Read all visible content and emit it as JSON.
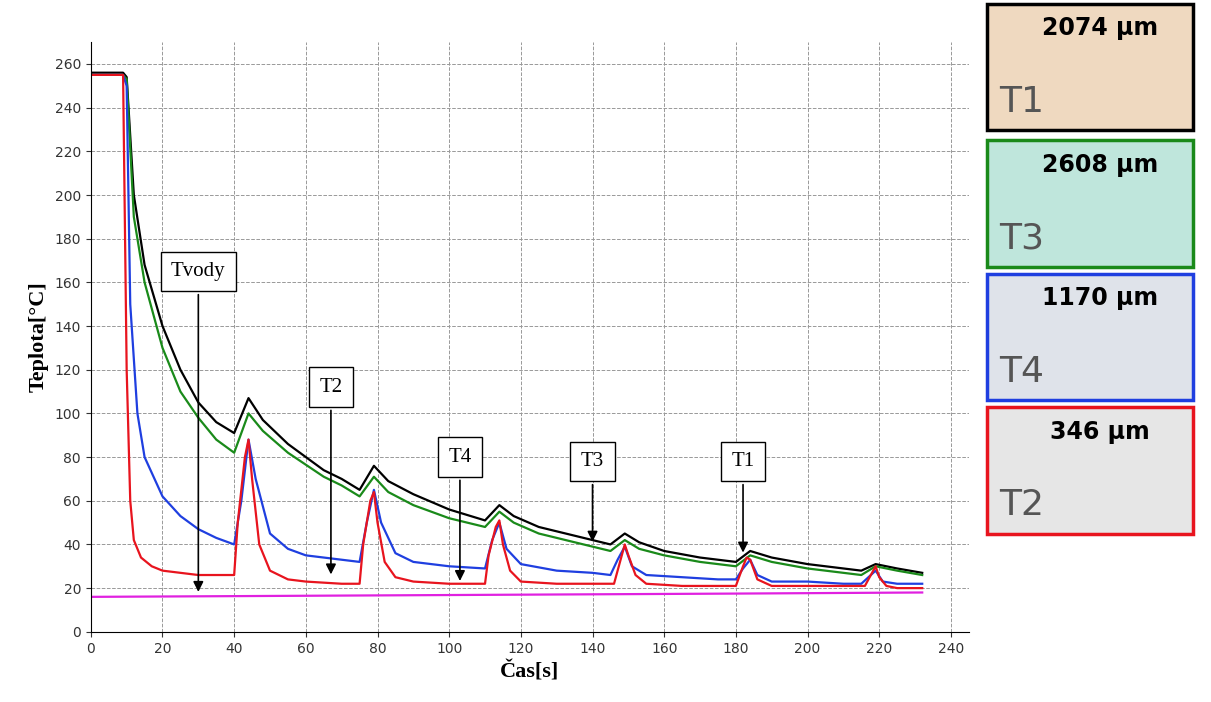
{
  "chart_data": {
    "type": "line",
    "x_label": "Čas[s]",
    "y_label": "Teplota[°C]",
    "xlim": [
      0,
      245
    ],
    "ylim": [
      0,
      270
    ],
    "xticks": [
      0,
      20,
      40,
      60,
      80,
      100,
      120,
      140,
      160,
      180,
      200,
      220,
      240
    ],
    "yticks": [
      0,
      20,
      40,
      60,
      80,
      100,
      120,
      140,
      160,
      180,
      200,
      220,
      240,
      260
    ],
    "grid": true,
    "series": [
      {
        "name": "T1",
        "color": "#000000",
        "x": [
          0,
          9,
          10,
          12,
          15,
          20,
          25,
          30,
          35,
          40,
          44,
          48,
          55,
          60,
          65,
          70,
          75,
          79,
          83,
          90,
          100,
          110,
          114,
          118,
          125,
          135,
          145,
          149,
          153,
          160,
          170,
          180,
          184,
          190,
          200,
          210,
          215,
          219,
          225,
          232
        ],
        "values": [
          256,
          256,
          254,
          200,
          168,
          140,
          120,
          105,
          96,
          91,
          107,
          97,
          86,
          80,
          74,
          70,
          65,
          76,
          69,
          63,
          56,
          51,
          58,
          53,
          48,
          44,
          40,
          45,
          41,
          37,
          34,
          32,
          37,
          34,
          31,
          29,
          28,
          31,
          29,
          27
        ]
      },
      {
        "name": "T3",
        "color": "#1a8a1a",
        "x": [
          0,
          9,
          10,
          12,
          15,
          20,
          25,
          30,
          35,
          40,
          44,
          48,
          55,
          65,
          70,
          75,
          79,
          83,
          90,
          100,
          110,
          114,
          118,
          125,
          135,
          145,
          149,
          153,
          160,
          170,
          180,
          184,
          190,
          200,
          210,
          215,
          219,
          225,
          232
        ],
        "values": [
          255,
          255,
          253,
          190,
          160,
          130,
          110,
          98,
          88,
          82,
          100,
          92,
          82,
          71,
          67,
          62,
          71,
          64,
          58,
          52,
          48,
          55,
          50,
          45,
          41,
          37,
          42,
          38,
          35,
          32,
          30,
          35,
          32,
          29,
          27,
          26,
          30,
          28,
          26
        ]
      },
      {
        "name": "T4",
        "color": "#1f3fe0",
        "x": [
          0,
          9,
          10,
          11,
          13,
          15,
          20,
          25,
          30,
          35,
          40,
          42,
          44,
          46,
          50,
          55,
          60,
          65,
          70,
          75,
          77,
          79,
          81,
          85,
          90,
          100,
          110,
          112,
          114,
          116,
          120,
          130,
          140,
          145,
          147,
          149,
          151,
          155,
          165,
          175,
          180,
          182,
          184,
          186,
          190,
          200,
          210,
          215,
          217,
          219,
          221,
          225,
          232
        ],
        "values": [
          255,
          255,
          250,
          150,
          100,
          80,
          62,
          53,
          47,
          43,
          40,
          60,
          88,
          70,
          45,
          38,
          35,
          34,
          33,
          32,
          50,
          65,
          50,
          36,
          32,
          30,
          29,
          42,
          50,
          38,
          31,
          28,
          27,
          26,
          33,
          39,
          30,
          26,
          25,
          24,
          24,
          29,
          33,
          26,
          23,
          23,
          22,
          22,
          25,
          28,
          23,
          22,
          22
        ]
      },
      {
        "name": "T2",
        "color": "#e8141e",
        "x": [
          0,
          9,
          10,
          11,
          12,
          14,
          17,
          20,
          25,
          30,
          35,
          40,
          41,
          43,
          44,
          45,
          47,
          50,
          55,
          60,
          70,
          75,
          76,
          78,
          79,
          80,
          82,
          85,
          90,
          100,
          110,
          111,
          113,
          114,
          115,
          117,
          120,
          130,
          140,
          146,
          148,
          149,
          150,
          152,
          155,
          165,
          175,
          180,
          182,
          183,
          184,
          186,
          190,
          200,
          210,
          216,
          218,
          219,
          220,
          222,
          225,
          232
        ],
        "values": [
          255,
          255,
          120,
          60,
          42,
          34,
          30,
          28,
          27,
          26,
          26,
          26,
          50,
          80,
          88,
          70,
          40,
          28,
          24,
          23,
          22,
          22,
          40,
          60,
          64,
          50,
          32,
          25,
          23,
          22,
          22,
          35,
          48,
          51,
          40,
          28,
          23,
          22,
          22,
          22,
          34,
          40,
          35,
          26,
          22,
          21,
          21,
          21,
          30,
          34,
          33,
          24,
          21,
          21,
          21,
          21,
          27,
          30,
          25,
          21,
          20,
          20
        ]
      },
      {
        "name": "Tvody",
        "color": "#e020e0",
        "x": [
          0,
          60,
          120,
          180,
          232
        ],
        "values": [
          16,
          16.5,
          17,
          17.5,
          18
        ]
      }
    ],
    "annotations": [
      {
        "text": "Tvody",
        "x": 30,
        "y": 17
      },
      {
        "text": "T2",
        "x": 67,
        "y": 25
      },
      {
        "text": "T4",
        "x": 103,
        "y": 22
      },
      {
        "text": "T3",
        "x": 140,
        "y": 40
      },
      {
        "text": "T1",
        "x": 182,
        "y": 35
      }
    ],
    "panels": [
      {
        "label": "T1",
        "size": "2074 µm",
        "color": "#000000"
      },
      {
        "label": "T3",
        "size": "2608 µm",
        "color": "#1a8a1a"
      },
      {
        "label": "T4",
        "size": "1170 µm",
        "color": "#1f3fe0"
      },
      {
        "label": "T2",
        "size": "346 µm",
        "color": "#e8141e"
      }
    ]
  }
}
